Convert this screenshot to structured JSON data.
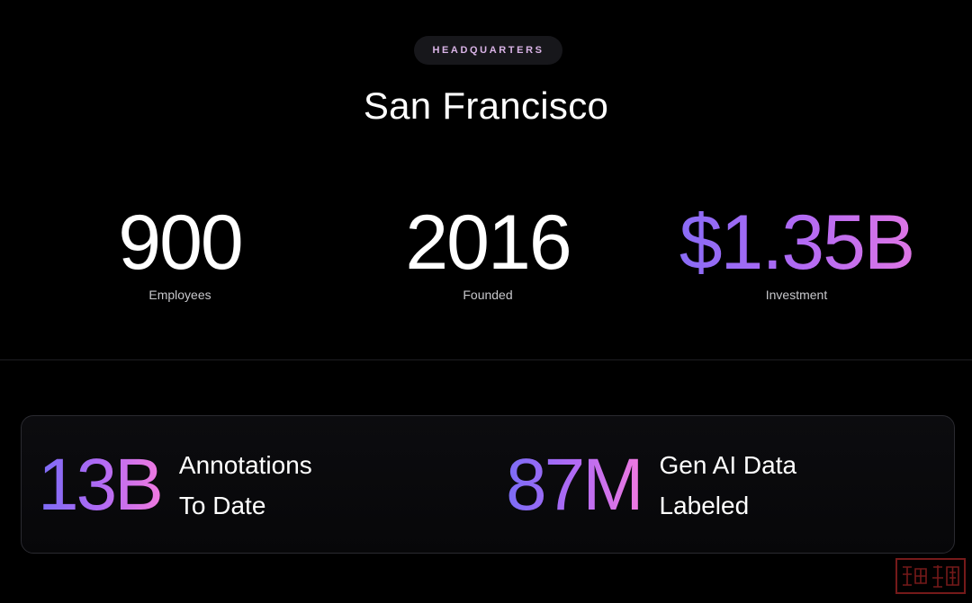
{
  "header": {
    "badge": "HEADQUARTERS",
    "city": "San Francisco"
  },
  "stats": [
    {
      "value": "900",
      "label": "Employees"
    },
    {
      "value": "2016",
      "label": "Founded"
    },
    {
      "value": "$1.35B",
      "label": "Investment"
    }
  ],
  "highlights": [
    {
      "value": "13B",
      "line1": "Annotations",
      "line2": "To Date"
    },
    {
      "value": "87M",
      "line1": "Gen AI Data",
      "line2": "Labeled"
    }
  ],
  "colors": {
    "background": "#000000",
    "gradient_start": "#7b6cf6",
    "gradient_mid": "#b06af4",
    "gradient_end": "#f07ae0",
    "badge_text": "#d9b3e6",
    "stamp": "#8a1f1f"
  },
  "watermark": {
    "icon": "seal-stamp-icon"
  }
}
